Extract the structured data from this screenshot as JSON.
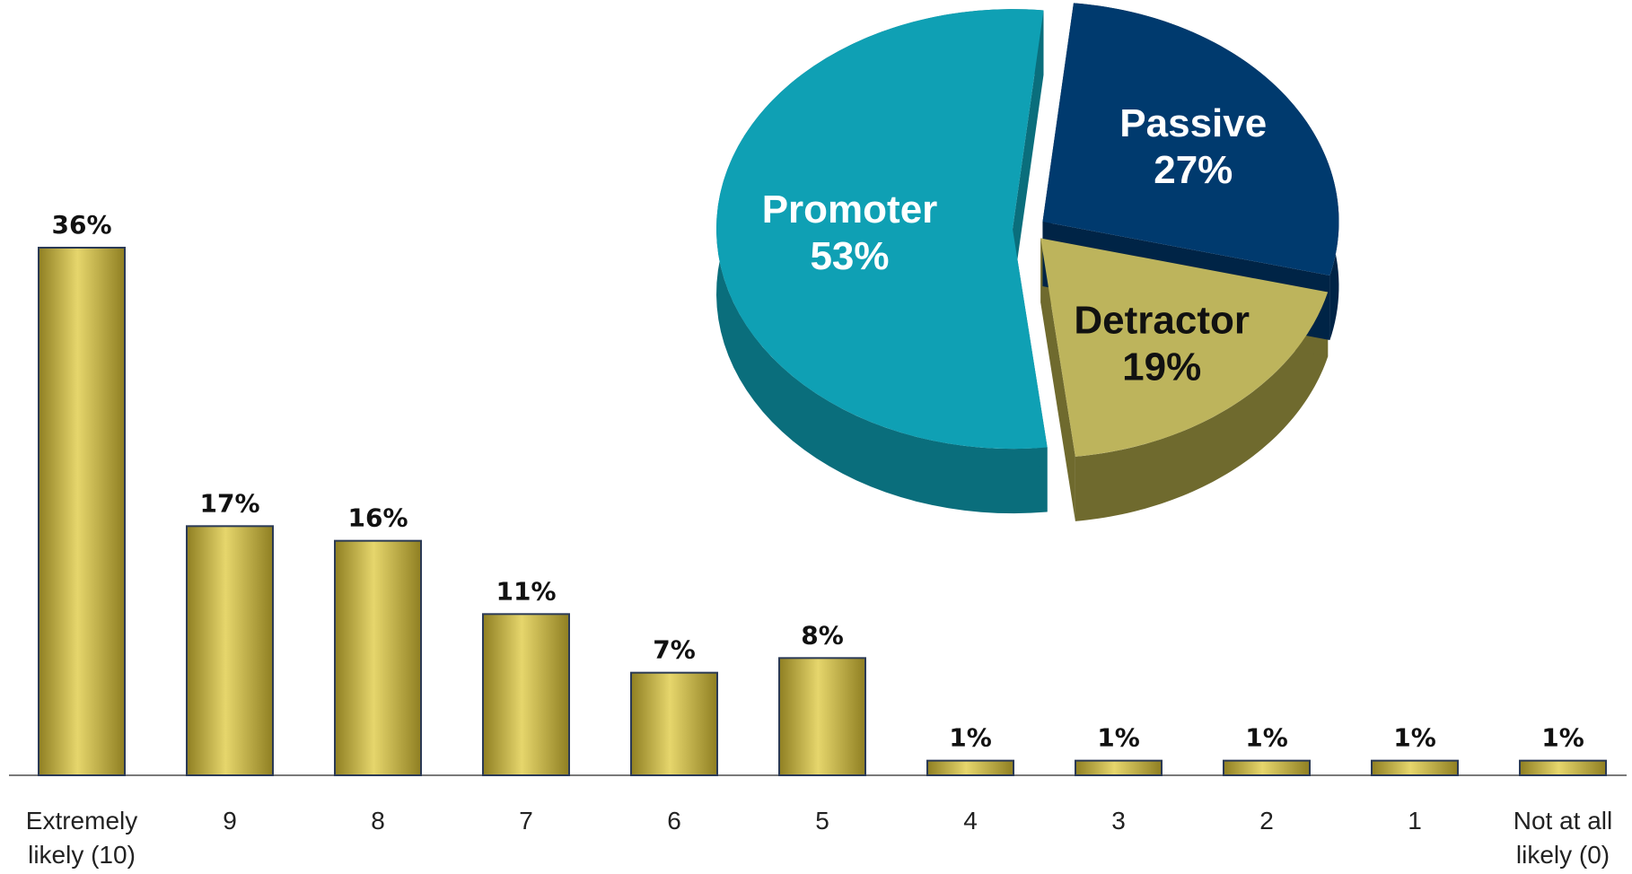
{
  "chart_data": [
    {
      "type": "bar",
      "categories": [
        "Extremely likely (10)",
        "9",
        "8",
        "7",
        "6",
        "5",
        "4",
        "3",
        "2",
        "1",
        "Not at all likely (0)"
      ],
      "category_lines": [
        [
          "Extremely",
          "likely (10)"
        ],
        [
          "9"
        ],
        [
          "8"
        ],
        [
          "7"
        ],
        [
          "6"
        ],
        [
          "5"
        ],
        [
          "4"
        ],
        [
          "3"
        ],
        [
          "2"
        ],
        [
          "1"
        ],
        [
          "Not at all",
          "likely (0)"
        ]
      ],
      "values": [
        36,
        17,
        16,
        11,
        7,
        8,
        1,
        1,
        1,
        1,
        1
      ],
      "data_labels": [
        "36%",
        "17%",
        "16%",
        "11%",
        "7%",
        "8%",
        "1%",
        "1%",
        "1%",
        "1%",
        "1%"
      ],
      "ylim": [
        0,
        40
      ],
      "grid": false,
      "colors": {
        "bar": "#C8B43C",
        "bar_light": "#E6D66C",
        "bar_dark": "#8F7F22",
        "outline": "#2B3A55",
        "axis": "#7A7A7A"
      }
    },
    {
      "type": "pie",
      "labels": [
        "Promoter",
        "Passive",
        "Detractor"
      ],
      "values": [
        53,
        27,
        19
      ],
      "data_labels": [
        "53%",
        "27%",
        "19%"
      ],
      "colors": [
        "#0FA0B4",
        "#003A6E",
        "#BDB45C"
      ],
      "side_colors": [
        "#0A6E7C",
        "#002446",
        "#6F6A2E"
      ],
      "label_colors": [
        "#FFFFFF",
        "#FFFFFF",
        "#111111"
      ],
      "style": "3d-exploded"
    }
  ]
}
